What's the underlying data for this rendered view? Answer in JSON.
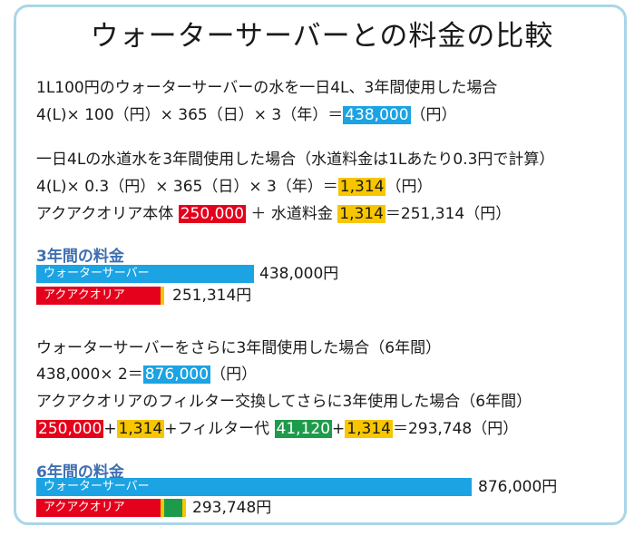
{
  "title": "ウォーターサーバーとの料金の比較",
  "section1": {
    "line1": "1L100円のウォーターサーバーの水を一日4L、3年間使用した場合",
    "formula_prefix": "4(L)× 100（円）× 365（日）× 3（年）＝",
    "formula_result": "438,000",
    "formula_suffix": "（円）"
  },
  "section2": {
    "line1": "一日4Lの水道水を3年間使用した場合（水道料金は1Lあたり0.3円で計算）",
    "formula_prefix": "4(L)× 0.3（円）× 365（日）× 3（年）＝",
    "formula_result": "1,314",
    "formula_suffix": "（円）",
    "total_prefix": "アクアクオリア本体 ",
    "body_price": "250,000",
    "plus_water": " ＋ 水道料金 ",
    "water_price": "1,314",
    "total_suffix": "＝251,314（円）"
  },
  "chart3": {
    "heading": "3年間の料金",
    "bar1_label": "ウォーターサーバー",
    "bar1_value": "438,000円",
    "bar2_label": "アクアクオリア",
    "bar2_value": "251,314円"
  },
  "section3": {
    "line1": "ウォーターサーバーをさらに3年間使用した場合（6年間）",
    "formula_prefix": "438,000× 2＝",
    "formula_result": "876,000",
    "formula_suffix": "（円）",
    "line3": "アクアクオリアのフィルター交換してさらに3年使用した場合（6年間）",
    "t1": "250,000",
    "p1": "+",
    "t2": "1,314",
    "p2": "+フィルター代 ",
    "t3": "41,120",
    "p3": "+",
    "t4": "1,314",
    "result": "＝293,748（円）"
  },
  "chart6": {
    "heading": "6年間の料金",
    "bar1_label": "ウォーターサーバー",
    "bar1_value": "876,000円",
    "bar2_label": "アクアクオリア",
    "bar2_value": "293,748円"
  },
  "colors": {
    "blue": "#1ba3e3",
    "red": "#e5001b",
    "yellow": "#f7c600",
    "green": "#1e9b4a",
    "heading": "#3f6fb1"
  }
}
